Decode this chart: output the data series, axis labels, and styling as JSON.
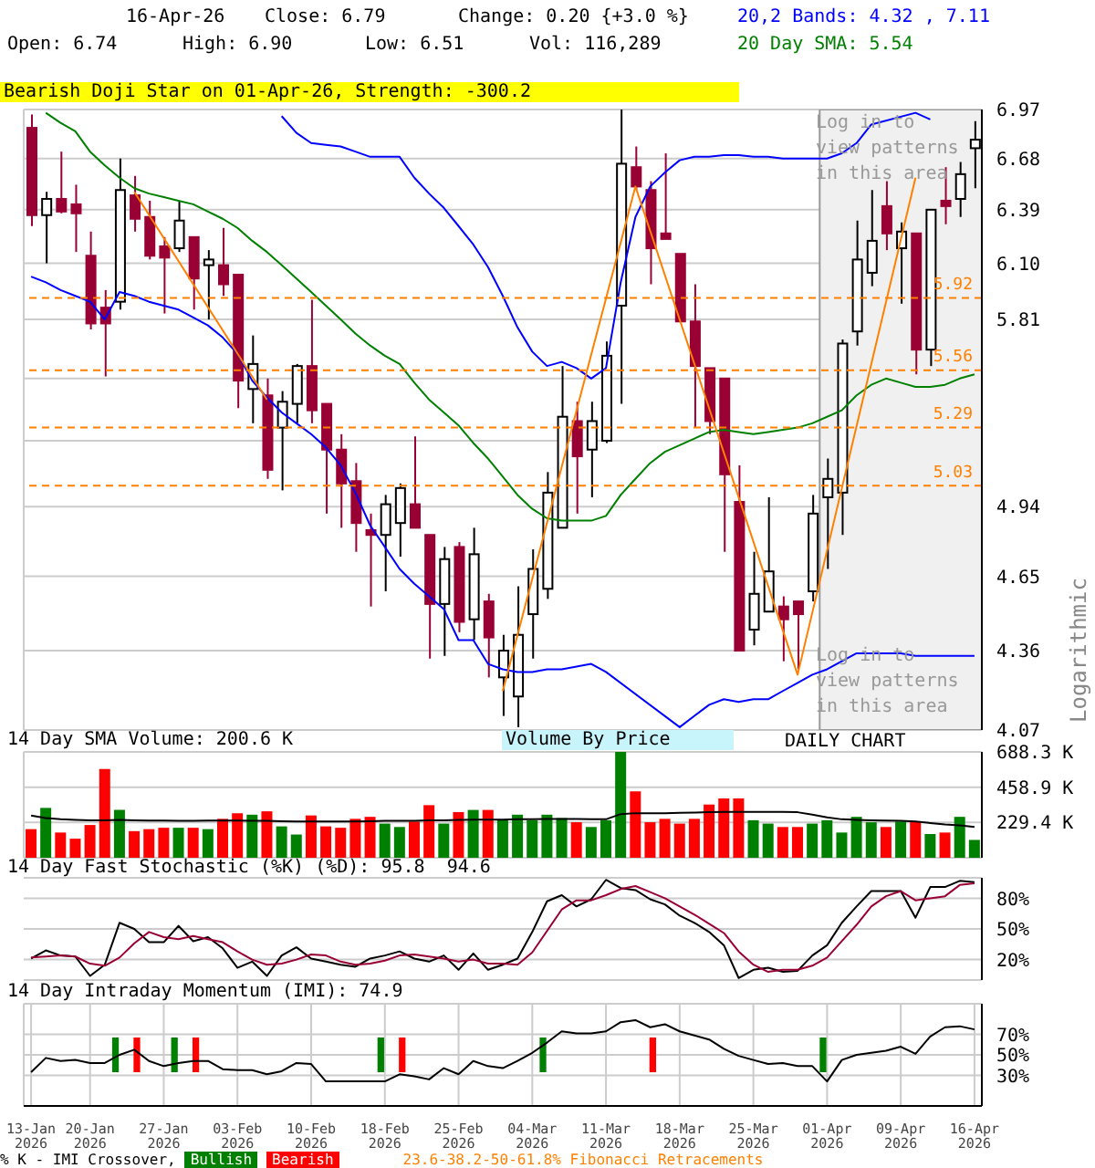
{
  "chart_data": [
    {
      "type": "candlestick",
      "ylabel": "Logarithmic",
      "log": true,
      "tick_labels": "y",
      "grid": true,
      "legend": false,
      "categories": [
        "13-Jan 2026",
        null,
        null,
        null,
        "20-Jan 2026",
        null,
        null,
        null,
        null,
        "27-Jan 2026",
        null,
        null,
        null,
        null,
        "03-Feb 2026",
        null,
        null,
        null,
        null,
        "10-Feb 2026",
        null,
        null,
        null,
        null,
        "18-Feb 2026",
        null,
        null,
        null,
        null,
        "25-Feb 2026",
        null,
        null,
        null,
        null,
        "04-Mar 2026",
        null,
        null,
        null,
        null,
        "11-Mar 2026",
        null,
        null,
        null,
        null,
        "18-Mar 2026",
        null,
        null,
        null,
        null,
        "25-Mar 2026",
        null,
        null,
        null,
        null,
        "01-Apr 2026",
        null,
        null,
        null,
        null,
        "09-Apr 2026",
        null,
        null,
        null,
        null,
        "16-Apr 2026"
      ],
      "ohlc": [
        [
          6.86,
          6.94,
          6.3,
          6.36
        ],
        [
          6.36,
          6.49,
          6.1,
          6.45
        ],
        [
          6.45,
          6.72,
          6.37,
          6.38
        ],
        [
          6.42,
          6.53,
          6.16,
          6.37
        ],
        [
          6.14,
          6.27,
          5.76,
          5.79
        ],
        [
          5.87,
          5.96,
          5.53,
          5.79
        ],
        [
          5.9,
          6.68,
          5.86,
          6.5
        ],
        [
          6.47,
          6.58,
          6.27,
          6.34
        ],
        [
          6.35,
          6.44,
          6.12,
          6.14
        ],
        [
          6.19,
          6.24,
          5.84,
          6.13
        ],
        [
          6.18,
          6.44,
          6.16,
          6.33
        ],
        [
          6.24,
          6.24,
          5.86,
          6.02
        ],
        [
          6.09,
          6.17,
          5.81,
          6.12
        ],
        [
          6.09,
          6.29,
          5.93,
          5.99
        ],
        [
          6.04,
          6.04,
          5.38,
          5.51
        ],
        [
          5.47,
          5.73,
          5.31,
          5.59
        ],
        [
          5.44,
          5.52,
          5.06,
          5.1
        ],
        [
          5.29,
          5.46,
          5.01,
          5.41
        ],
        [
          5.4,
          5.59,
          5.31,
          5.58
        ],
        [
          5.58,
          5.91,
          5.31,
          5.37
        ],
        [
          5.4,
          5.4,
          4.91,
          5.19
        ],
        [
          5.19,
          5.26,
          4.85,
          5.04
        ],
        [
          5.05,
          5.13,
          4.75,
          4.87
        ],
        [
          4.84,
          4.91,
          4.53,
          4.82
        ],
        [
          4.82,
          4.99,
          4.59,
          4.95
        ],
        [
          4.87,
          5.04,
          4.73,
          5.02
        ],
        [
          4.95,
          5.25,
          4.85,
          4.85
        ],
        [
          4.82,
          4.82,
          4.33,
          4.54
        ],
        [
          4.54,
          4.77,
          4.34,
          4.72
        ],
        [
          4.77,
          4.79,
          4.43,
          4.47
        ],
        [
          4.48,
          4.85,
          4.4,
          4.74
        ],
        [
          4.55,
          4.58,
          4.26,
          4.41
        ],
        [
          4.26,
          4.42,
          4.12,
          4.36
        ],
        [
          4.19,
          4.61,
          4.08,
          4.42
        ],
        [
          4.5,
          4.76,
          4.33,
          4.68
        ],
        [
          4.6,
          5.09,
          4.56,
          5.0
        ],
        [
          4.85,
          5.58,
          4.85,
          5.34
        ],
        [
          5.32,
          5.41,
          4.91,
          5.16
        ],
        [
          5.19,
          5.41,
          4.98,
          5.32
        ],
        [
          5.23,
          5.7,
          5.22,
          5.63
        ],
        [
          5.88,
          6.97,
          5.4,
          6.65
        ],
        [
          6.63,
          6.75,
          6.5,
          6.52
        ],
        [
          6.5,
          6.55,
          5.99,
          6.18
        ],
        [
          6.26,
          6.71,
          6.23,
          6.23
        ],
        [
          6.15,
          6.15,
          5.8,
          5.8
        ],
        [
          5.8,
          5.99,
          5.29,
          5.58
        ],
        [
          5.57,
          5.57,
          5.26,
          5.32
        ],
        [
          5.52,
          5.52,
          4.75,
          5.08
        ],
        [
          4.96,
          5.12,
          4.36,
          4.36
        ],
        [
          4.44,
          4.75,
          4.38,
          4.58
        ],
        [
          4.51,
          4.98,
          4.51,
          4.67
        ],
        [
          4.53,
          4.57,
          4.32,
          4.48
        ],
        [
          4.55,
          4.55,
          4.29,
          4.5
        ],
        [
          4.59,
          4.99,
          4.55,
          4.91
        ],
        [
          4.98,
          5.15,
          4.68,
          5.06
        ],
        [
          5.0,
          5.71,
          4.82,
          5.69
        ],
        [
          5.75,
          6.33,
          5.68,
          6.12
        ],
        [
          6.05,
          6.5,
          5.98,
          6.22
        ],
        [
          6.41,
          6.55,
          6.17,
          6.26
        ],
        [
          6.18,
          6.32,
          5.89,
          6.27
        ],
        [
          6.26,
          6.26,
          5.54,
          5.66
        ],
        [
          5.66,
          6.39,
          5.58,
          6.39
        ],
        [
          6.44,
          6.63,
          6.31,
          6.41
        ],
        [
          6.45,
          6.66,
          6.35,
          6.59
        ],
        [
          6.74,
          6.9,
          6.51,
          6.79
        ]
      ],
      "colors": [
        "#990033",
        "#ffffff",
        "#990033",
        "#990033",
        "#990033",
        "#990033",
        "#ffffff",
        "#990033",
        "#990033",
        "#990033",
        "#ffffff",
        "#990033",
        "#ffffff",
        "#990033",
        "#990033",
        "#ffffff",
        "#990033",
        "#ffffff",
        "#ffffff",
        "#990033",
        "#990033",
        "#990033",
        "#990033",
        "#990033",
        "#ffffff",
        "#ffffff",
        "#990033",
        "#990033",
        "#ffffff",
        "#990033",
        "#ffffff",
        "#990033",
        "#ffffff",
        "#ffffff",
        "#ffffff",
        "#ffffff",
        "#ffffff",
        "#990033",
        "#ffffff",
        "#ffffff",
        "#ffffff",
        "#990033",
        "#990033",
        "#990033",
        "#990033",
        "#990033",
        "#990033",
        "#990033",
        "#990033",
        "#ffffff",
        "#ffffff",
        "#990033",
        "#990033",
        "#ffffff",
        "#ffffff",
        "#ffffff",
        "#ffffff",
        "#ffffff",
        "#990033",
        "#ffffff",
        "#990033",
        "#ffffff",
        "#990033",
        "#ffffff",
        "#ffffff"
      ],
      "series": [
        {
          "type": "line",
          "color": "#0000ff",
          "values": [
            null,
            null,
            null,
            null,
            null,
            null,
            null,
            null,
            null,
            null,
            null,
            null,
            null,
            null,
            null,
            null,
            null,
            6.93,
            6.83,
            6.77,
            6.76,
            6.75,
            6.72,
            6.69,
            6.69,
            6.69,
            6.57,
            6.48,
            6.4,
            6.3,
            6.2,
            6.08,
            5.93,
            5.77,
            5.65,
            5.58,
            5.6,
            5.57,
            5.52,
            5.57,
            6.0,
            6.35,
            6.52,
            6.6,
            6.67,
            6.69,
            6.69,
            6.7,
            6.7,
            6.69,
            6.69,
            6.68,
            6.68,
            6.68,
            6.68,
            6.71,
            6.77,
            6.88,
            null,
            null,
            6.95,
            6.91,
            null,
            null,
            null
          ]
        },
        {
          "type": "line",
          "color": "#0000ff",
          "values": [
            6.03,
            6.0,
            5.96,
            5.93,
            5.9,
            5.81,
            5.95,
            5.93,
            5.9,
            5.88,
            5.86,
            5.82,
            5.78,
            5.72,
            5.64,
            5.51,
            5.43,
            5.36,
            5.31,
            5.26,
            5.2,
            5.12,
            5.0,
            4.86,
            4.77,
            4.68,
            4.62,
            4.57,
            4.52,
            4.4,
            4.4,
            4.31,
            4.29,
            4.28,
            4.28,
            4.29,
            4.29,
            4.3,
            4.31,
            4.28,
            null,
            null,
            null,
            null,
            4.08,
            4.12,
            4.16,
            4.18,
            4.17,
            4.18,
            4.18,
            4.21,
            4.24,
            4.27,
            4.29,
            4.32,
            4.35,
            4.35,
            4.35,
            4.35,
            4.34,
            4.34,
            4.34,
            4.34,
            4.34
          ]
        },
        {
          "type": "line",
          "color": "#008000",
          "values": [
            null,
            6.95,
            6.89,
            6.84,
            6.72,
            6.64,
            6.57,
            6.51,
            6.48,
            6.46,
            6.44,
            6.42,
            6.38,
            6.34,
            6.29,
            6.22,
            6.16,
            6.09,
            6.02,
            5.95,
            5.88,
            5.81,
            5.74,
            5.68,
            5.63,
            5.59,
            5.5,
            5.42,
            5.36,
            5.3,
            5.22,
            5.15,
            5.07,
            4.99,
            4.93,
            4.89,
            4.88,
            4.88,
            4.88,
            4.9,
            4.99,
            5.06,
            5.13,
            5.18,
            5.21,
            5.24,
            5.27,
            5.28,
            5.27,
            5.26,
            5.27,
            5.28,
            5.29,
            5.31,
            5.34,
            5.37,
            5.44,
            5.49,
            5.52,
            5.5,
            5.48,
            5.48,
            5.49,
            5.52,
            5.54
          ]
        },
        {
          "type": "line",
          "color": "#ff8000",
          "values": [
            null,
            null,
            null,
            null,
            null,
            null,
            null,
            6.49,
            null,
            null,
            null,
            null,
            null,
            null,
            null,
            null,
            5.42,
            null,
            null,
            null,
            null,
            null,
            null,
            null,
            null,
            null,
            null,
            null,
            null,
            null,
            null,
            null,
            null,
            null,
            null,
            null,
            null,
            null,
            null,
            null,
            null,
            null,
            null,
            null,
            null,
            null,
            null,
            null,
            null,
            null,
            null,
            null,
            null,
            null,
            null,
            null,
            null,
            null,
            null,
            null,
            null,
            null,
            null,
            null,
            null
          ]
        },
        {
          "type": "line",
          "color": "#ff8000",
          "values": [
            null,
            null,
            null,
            null,
            null,
            null,
            null,
            null,
            null,
            null,
            null,
            null,
            null,
            null,
            null,
            null,
            null,
            null,
            null,
            null,
            null,
            null,
            null,
            null,
            null,
            null,
            null,
            null,
            null,
            null,
            null,
            null,
            4.21,
            null,
            null,
            null,
            null,
            null,
            null,
            null,
            null,
            6.52,
            null,
            null,
            null,
            null,
            null,
            null,
            null,
            null,
            null,
            null,
            4.27,
            null,
            null,
            null,
            null,
            null,
            null,
            null,
            6.57,
            null,
            null,
            null,
            null
          ]
        }
      ],
      "ylim": [
        4.07,
        6.97
      ],
      "yticks": [
        4.07,
        4.36,
        4.65,
        4.94,
        {
          "value": 5.23,
          "label": null
        },
        {
          "value": 5.52,
          "label": null
        },
        5.81,
        {
          "value": 6.1,
          "label": "6.10"
        },
        6.39,
        6.68,
        6.97
      ],
      "ref_lines": [
        {
          "axis": "y",
          "value": 5.92,
          "label": "5.92",
          "color": "#ff8000",
          "line_style": "dashed"
        },
        {
          "axis": "y",
          "value": 5.56,
          "label": "5.56",
          "color": "#ff8000",
          "line_style": "dashed"
        },
        {
          "axis": "y",
          "value": 5.29,
          "label": "5.29",
          "color": "#ff8000",
          "line_style": "dashed"
        },
        {
          "axis": "y",
          "value": 5.03,
          "label": "5.03",
          "color": "#ff8000",
          "line_style": "dashed"
        }
      ],
      "bands": [
        {
          "axis": "x",
          "from": "01-Apr 2026",
          "to": "16-Apr 2026",
          "color": "#f0f0f0"
        }
      ],
      "annotations": [
        "16-Apr-26",
        "Close: 6.79",
        "Change: 0.20 {+3.0 %}",
        "Open: 6.74",
        "High: 6.90",
        "Low: 6.51",
        "Vol: 116,289",
        "20,2 Bands: 4.32 , 7.11",
        "20 Day SMA: 5.54",
        "Bearish Doji Star on 01-Apr-26, Strength: -300.2",
        "Log in to view patterns in this area",
        "Log in to view patterns in this area",
        "Volume By Price",
        "DAILY CHART"
      ]
    },
    {
      "type": "bar",
      "title": "14 Day SMA Volume: 200.6 K",
      "tick_labels": "y",
      "grid": true,
      "legend": false,
      "categories": [
        "13-Jan 2026",
        null,
        null,
        null,
        "20-Jan 2026",
        null,
        null,
        null,
        null,
        "27-Jan 2026",
        null,
        null,
        null,
        null,
        "03-Feb 2026",
        null,
        null,
        null,
        null,
        "10-Feb 2026",
        null,
        null,
        null,
        null,
        "18-Feb 2026",
        null,
        null,
        null,
        null,
        "25-Feb 2026",
        null,
        null,
        null,
        null,
        "04-Mar 2026",
        null,
        null,
        null,
        null,
        "11-Mar 2026",
        null,
        null,
        null,
        null,
        "18-Mar 2026",
        null,
        null,
        null,
        null,
        "25-Mar 2026",
        null,
        null,
        null,
        null,
        "01-Apr 2026",
        null,
        null,
        null,
        null,
        "09-Apr 2026",
        null,
        null,
        null,
        null,
        "16-Apr 2026"
      ],
      "series": [
        {
          "type": "bar",
          "values": [
            186,
            324,
            164,
            124,
            213,
            577,
            311,
            173,
            186,
            195,
            195,
            195,
            186,
            253,
            289,
            280,
            302,
            204,
            151,
            275,
            204,
            195,
            253,
            266,
            222,
            200,
            235,
            342,
            222,
            297,
            311,
            311,
            244,
            280,
            244,
            280,
            258,
            231,
            200,
            244,
            688,
            431,
            231,
            253,
            222,
            253,
            346,
            386,
            386,
            244,
            222,
            200,
            200,
            222,
            244,
            164,
            266,
            231,
            200,
            235,
            235,
            155,
            164,
            266,
            116
          ],
          "colors": [
            "#ff0000",
            "#008000",
            "#ff0000",
            "#ff0000",
            "#ff0000",
            "#ff0000",
            "#008000",
            "#ff0000",
            "#ff0000",
            "#ff0000",
            "#008000",
            "#ff0000",
            "#008000",
            "#ff0000",
            "#ff0000",
            "#008000",
            "#ff0000",
            "#008000",
            "#008000",
            "#ff0000",
            "#ff0000",
            "#ff0000",
            "#ff0000",
            "#ff0000",
            "#008000",
            "#008000",
            "#ff0000",
            "#ff0000",
            "#008000",
            "#ff0000",
            "#008000",
            "#ff0000",
            "#008000",
            "#008000",
            "#008000",
            "#008000",
            "#008000",
            "#ff0000",
            "#008000",
            "#008000",
            "#008000",
            "#ff0000",
            "#ff0000",
            "#ff0000",
            "#ff0000",
            "#ff0000",
            "#ff0000",
            "#ff0000",
            "#ff0000",
            "#008000",
            "#008000",
            "#ff0000",
            "#ff0000",
            "#008000",
            "#008000",
            "#008000",
            "#008000",
            "#008000",
            "#ff0000",
            "#008000",
            "#ff0000",
            "#008000",
            "#ff0000",
            "#008000",
            "#008000"
          ]
        },
        {
          "type": "line",
          "color": "#000000",
          "values": [
            275,
            258,
            250,
            246,
            244,
            244,
            246,
            244,
            242,
            242,
            240,
            240,
            242,
            242,
            242,
            240,
            240,
            238,
            236,
            236,
            236,
            236,
            236,
            238,
            240,
            240,
            240,
            244,
            244,
            246,
            248,
            248,
            248,
            250,
            250,
            252,
            252,
            252,
            250,
            250,
            284,
            290,
            290,
            290,
            292,
            294,
            296,
            298,
            298,
            298,
            298,
            298,
            296,
            280,
            262,
            250,
            246,
            244,
            242,
            240,
            236,
            226,
            216,
            210,
            200.6
          ]
        }
      ],
      "ylim": [
        0,
        688.3
      ],
      "yticks": [
        {
          "value": 229.4,
          "label": "229.4 K"
        },
        {
          "value": 458.9,
          "label": "458.9 K"
        },
        {
          "value": 688.3,
          "label": "688.3 K"
        }
      ]
    },
    {
      "type": "line",
      "title": "14 Day Fast Stochastic (%K) (%D): 95.8  94.6",
      "tick_labels": "y",
      "grid": "y",
      "legend": false,
      "categories": [
        "13-Jan 2026",
        null,
        null,
        null,
        "20-Jan 2026",
        null,
        null,
        null,
        null,
        "27-Jan 2026",
        null,
        null,
        null,
        null,
        "03-Feb 2026",
        null,
        null,
        null,
        null,
        "10-Feb 2026",
        null,
        null,
        null,
        null,
        "18-Feb 2026",
        null,
        null,
        null,
        null,
        "25-Feb 2026",
        null,
        null,
        null,
        null,
        "04-Mar 2026",
        null,
        null,
        null,
        null,
        "11-Mar 2026",
        null,
        null,
        null,
        null,
        "18-Mar 2026",
        null,
        null,
        null,
        null,
        "25-Mar 2026",
        null,
        null,
        null,
        null,
        "01-Apr 2026",
        null,
        null,
        null,
        null,
        "09-Apr 2026",
        null,
        null,
        null,
        null,
        "16-Apr 2026"
      ],
      "series": [
        {
          "type": "line",
          "color": "#000000",
          "values": [
            21,
            29,
            24,
            23,
            4,
            15,
            56,
            50,
            37,
            37,
            53,
            38,
            42,
            31,
            12,
            18,
            4,
            24,
            32,
            21,
            18,
            15,
            13,
            21,
            24,
            28,
            21,
            18,
            24,
            10,
            26,
            10,
            15,
            21,
            47,
            77,
            83,
            72,
            79,
            98,
            90,
            88,
            79,
            74,
            63,
            56,
            47,
            34,
            2,
            10,
            12,
            8,
            9,
            24,
            34,
            56,
            72,
            87,
            87,
            87,
            61,
            91,
            91,
            97,
            95.8
          ]
        },
        {
          "type": "line",
          "color": "#990033",
          "values": [
            22,
            23,
            24,
            23,
            16,
            14,
            22,
            36,
            47,
            42,
            40,
            43,
            40,
            37,
            28,
            20,
            15,
            16,
            20,
            25,
            24,
            18,
            15,
            16,
            19,
            24,
            25,
            23,
            21,
            18,
            20,
            16,
            16,
            15,
            27,
            48,
            69,
            78,
            78,
            83,
            89,
            92,
            86,
            80,
            72,
            64,
            55,
            46,
            28,
            15,
            8,
            10,
            10,
            14,
            22,
            38,
            54,
            72,
            82,
            87,
            78,
            80,
            82,
            93,
            94.6
          ]
        }
      ],
      "ylim": [
        0,
        100
      ],
      "yticks": [
        {
          "value": 20,
          "label": "20%"
        },
        {
          "value": 50,
          "label": "50%"
        },
        {
          "value": 80,
          "label": "80%"
        }
      ]
    },
    {
      "type": "line",
      "title": "14 Day Intraday Momentum (IMI): 74.9",
      "grid": true,
      "legend": "bottom",
      "categories": [
        "13-Jan 2026",
        null,
        null,
        null,
        "20-Jan 2026",
        null,
        null,
        null,
        null,
        "27-Jan 2026",
        null,
        null,
        null,
        null,
        "03-Feb 2026",
        null,
        null,
        null,
        null,
        "10-Feb 2026",
        null,
        null,
        null,
        null,
        "18-Feb 2026",
        null,
        null,
        null,
        null,
        "25-Feb 2026",
        null,
        null,
        null,
        null,
        "04-Mar 2026",
        null,
        null,
        null,
        null,
        "11-Mar 2026",
        null,
        null,
        null,
        null,
        "18-Mar 2026",
        null,
        null,
        null,
        null,
        "25-Mar 2026",
        null,
        null,
        null,
        null,
        "01-Apr 2026",
        null,
        null,
        null,
        null,
        "09-Apr 2026",
        null,
        null,
        null,
        null,
        "16-Apr 2026"
      ],
      "series": [
        {
          "type": "line",
          "color": "#000000",
          "values": [
            33,
            47,
            44,
            45,
            42,
            42,
            50,
            55,
            44,
            39,
            42,
            44,
            44,
            36,
            35,
            35,
            31,
            34,
            42,
            41,
            24,
            24,
            24,
            24,
            24,
            31,
            29,
            26,
            37,
            31,
            44,
            39,
            37,
            44,
            52,
            62,
            73,
            71,
            71,
            73,
            82,
            84,
            77,
            80,
            73,
            69,
            65,
            56,
            49,
            45,
            41,
            42,
            39,
            39,
            24,
            45,
            50,
            52,
            54,
            58,
            51,
            68,
            77,
            78,
            74.9
          ]
        },
        {
          "type": "bar",
          "name": "Bullish",
          "color": "#008000",
          "base": [
            null,
            null,
            null,
            null,
            null,
            null,
            33,
            null,
            null,
            null,
            33,
            null,
            null,
            null,
            null,
            null,
            null,
            null,
            null,
            null,
            null,
            null,
            null,
            null,
            33,
            null,
            null,
            null,
            null,
            null,
            null,
            null,
            null,
            null,
            null,
            33,
            null,
            null,
            null,
            null,
            null,
            null,
            null,
            null,
            null,
            null,
            null,
            null,
            null,
            null,
            null,
            null,
            null,
            null,
            33,
            null,
            null,
            null,
            null,
            null,
            null,
            null,
            null,
            null,
            null
          ],
          "values": [
            null,
            null,
            null,
            null,
            null,
            null,
            34,
            null,
            null,
            null,
            34,
            null,
            null,
            null,
            null,
            null,
            null,
            null,
            null,
            null,
            null,
            null,
            null,
            null,
            34,
            null,
            null,
            null,
            null,
            null,
            null,
            null,
            null,
            null,
            null,
            34,
            null,
            null,
            null,
            null,
            null,
            null,
            null,
            null,
            null,
            null,
            null,
            null,
            null,
            null,
            null,
            null,
            null,
            null,
            34,
            null,
            null,
            null,
            null,
            null,
            null,
            null,
            null,
            null,
            null
          ]
        },
        {
          "type": "bar",
          "name": "Bearish",
          "color": "#ff0000",
          "base": [
            null,
            null,
            null,
            null,
            null,
            null,
            null,
            33,
            null,
            null,
            null,
            33,
            null,
            null,
            null,
            null,
            null,
            null,
            null,
            null,
            null,
            null,
            null,
            null,
            null,
            33,
            null,
            null,
            null,
            null,
            null,
            null,
            null,
            null,
            null,
            null,
            null,
            null,
            null,
            null,
            null,
            null,
            33,
            null,
            null,
            null,
            null,
            null,
            null,
            null,
            null,
            null,
            null,
            null,
            null,
            null,
            null,
            null,
            null,
            null,
            null,
            null,
            null,
            null,
            null
          ],
          "values": [
            null,
            null,
            null,
            null,
            null,
            null,
            null,
            34,
            null,
            null,
            null,
            34,
            null,
            null,
            null,
            null,
            null,
            null,
            null,
            null,
            null,
            null,
            null,
            null,
            null,
            34,
            null,
            null,
            null,
            null,
            null,
            null,
            null,
            null,
            null,
            null,
            null,
            null,
            null,
            null,
            null,
            null,
            34,
            null,
            null,
            null,
            null,
            null,
            null,
            null,
            null,
            null,
            null,
            null,
            null,
            null,
            null,
            null,
            null,
            null,
            null,
            null,
            null,
            null,
            null
          ]
        }
      ],
      "ylim": [
        0,
        100
      ],
      "yticks": [
        {
          "value": 30,
          "label": "30%"
        },
        {
          "value": 50,
          "label": "50%"
        },
        {
          "value": 70,
          "label": "70%"
        }
      ],
      "annotations": [
        "% K - IMI Crossover,",
        "23.6-38.2-50-61.8% Fibonacci Retracements"
      ]
    }
  ]
}
